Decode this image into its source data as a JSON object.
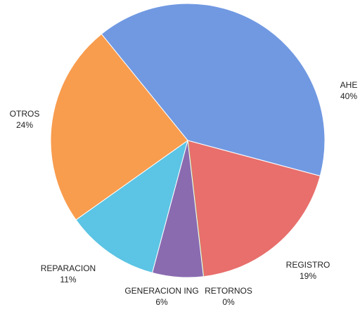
{
  "chart_data": {
    "type": "pie",
    "categories": [
      "AHE",
      "REGISTRO",
      "RETORNOS",
      "GENERACION ING",
      "REPARACION",
      "OTROS"
    ],
    "values": [
      40,
      19,
      0,
      6,
      11,
      24
    ],
    "value_labels": [
      "40%",
      "19%",
      "0%",
      "6%",
      "11%",
      "24%"
    ],
    "colors": [
      "#7199e2",
      "#e86f6c",
      "#9bbb59",
      "#8a6bb0",
      "#5cc4e4",
      "#f89c4e"
    ]
  }
}
